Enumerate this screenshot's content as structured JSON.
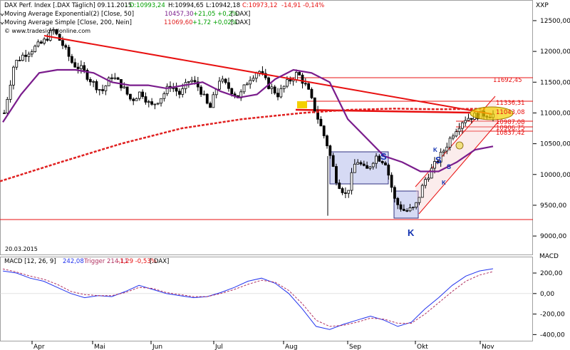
{
  "header": {
    "price_info": "DAX Perf. Index [.DAX  Täglich] 09.11.2015",
    "ohlc_o": "- O:10993,24",
    "ohlc_h": "H:10994,65",
    "ohlc_l": "L:10942,18",
    "ohlc_c": "C:10973,12",
    "ohlc_chg": "-14,91 -0,14%",
    "ema_label": "Moving Average Exponential(2) [Close, 50]",
    "ema_val": "10457,30",
    "ema_chg": "+21,05 +0,2%",
    "ema_sym": "[.DAX]",
    "sma_label": "Moving Average Simple [Close, 200, Nein]",
    "sma_val": "11069,60",
    "sma_chg": "+1,72 +0,02%",
    "sma_sym": "[.DAX]",
    "axis_code": "XXP",
    "watermark": "© www.tradesignalonline.com",
    "start_date": "20.03.2015"
  },
  "macd_header": {
    "label": "MACD [12, 26, 9]",
    "val": "242,08",
    "trigger": "Trigger 214,11",
    "chg": "-1,29 -0,53%",
    "sym": "[.DAX]",
    "axis": "MACD"
  },
  "colors": {
    "trend": "#e81010",
    "ema": "#7a1c8c",
    "sma": "#e02020",
    "candle": "#000000",
    "macd": "#2233ee",
    "trigger": "#b03060",
    "box_fill": "#c8cdf0",
    "box_stroke": "#303080",
    "pattern": "#1030b0",
    "highlight": "#f4d000"
  },
  "chart_data": [
    {
      "type": "candlestick",
      "x_axis_months": [
        "Apr",
        "Mai",
        "Jun",
        "Jul",
        "Aug",
        "Sep",
        "Okt",
        "Nov"
      ],
      "y_ticks": [
        "12500,00",
        "12000,00",
        "11500,00",
        "11000,00",
        "10500,00",
        "10000,00",
        "9500,00",
        "9000,00"
      ],
      "ylim": [
        8700,
        12650
      ],
      "price_labels": [
        "11692,45",
        "11336,31",
        "11043,08",
        "10987,08",
        "10906,75",
        "10837,42"
      ],
      "annotations": [
        "S",
        "S",
        "S",
        "K",
        "K",
        "K"
      ],
      "close_path": [
        11000,
        11800,
        11950,
        12050,
        12150,
        12350,
        12100,
        11800,
        11700,
        11500,
        11350,
        11600,
        11450,
        11200,
        11350,
        11100,
        11250,
        11450,
        11300,
        11550,
        11400,
        11050,
        11550,
        11400,
        11250,
        11550,
        11700,
        11450,
        11300,
        11500,
        11650,
        11400,
        10950,
        10500,
        9900,
        9650,
        10250,
        10050,
        10300,
        10200,
        9550,
        9400,
        9450,
        9900,
        10150,
        10400,
        10700,
        10900,
        10950,
        10980,
        10973
      ],
      "ema_path": [
        10850,
        11300,
        11650,
        11700,
        11700,
        11650,
        11500,
        11450,
        11450,
        11400,
        11450,
        11500,
        11350,
        11250,
        11300,
        11550,
        11700,
        11650,
        11500,
        10900,
        10600,
        10300,
        10200,
        10050,
        10050,
        10200,
        10400,
        10457
      ],
      "sma_path": [
        9890,
        10200,
        10500,
        10750,
        10900,
        11000,
        11050,
        11070,
        11060,
        11069
      ]
    },
    {
      "type": "line",
      "title": "MACD [12, 26, 9]",
      "y_ticks": [
        "200,00",
        "0,00",
        "-200,00",
        "-400,00"
      ],
      "ylim": [
        -460,
        360
      ],
      "series": [
        {
          "name": "MACD",
          "values": [
            220,
            200,
            150,
            120,
            60,
            0,
            -40,
            -20,
            -30,
            20,
            80,
            40,
            0,
            -20,
            -40,
            -30,
            10,
            60,
            120,
            150,
            100,
            0,
            -150,
            -320,
            -350,
            -300,
            -260,
            -220,
            -260,
            -320,
            -280,
            -150,
            -40,
            80,
            170,
            220,
            242
          ]
        },
        {
          "name": "Trigger",
          "values": [
            240,
            210,
            170,
            140,
            90,
            20,
            -10,
            -20,
            -20,
            10,
            60,
            50,
            10,
            -10,
            -30,
            -30,
            0,
            40,
            90,
            130,
            110,
            30,
            -100,
            -260,
            -320,
            -310,
            -280,
            -240,
            -250,
            -290,
            -290,
            -200,
            -90,
            20,
            120,
            180,
            214
          ]
        }
      ]
    }
  ]
}
